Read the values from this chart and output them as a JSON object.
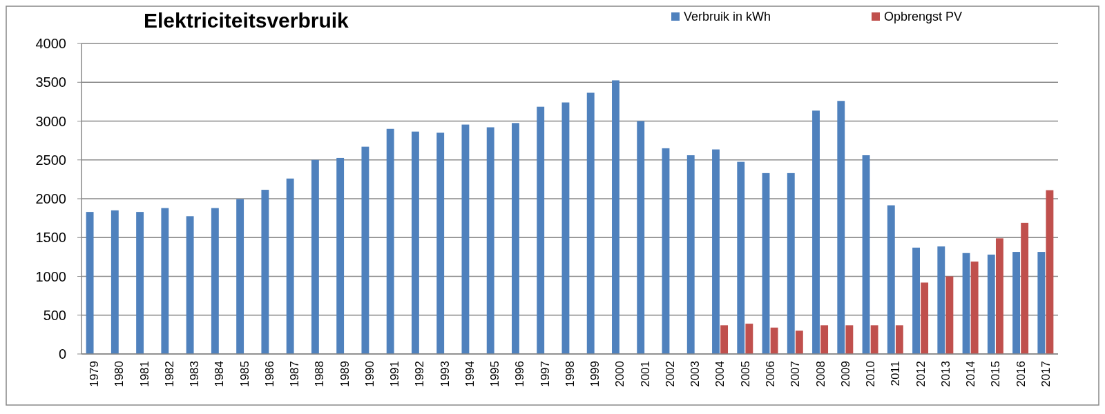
{
  "chart_data": {
    "type": "bar",
    "title": "Elektriciteitsverbruik",
    "categories": [
      "1979",
      "1980",
      "1981",
      "1982",
      "1983",
      "1984",
      "1985",
      "1986",
      "1987",
      "1988",
      "1989",
      "1990",
      "1991",
      "1992",
      "1993",
      "1994",
      "1995",
      "1996",
      "1997",
      "1998",
      "1999",
      "2000",
      "2001",
      "2002",
      "2003",
      "2004",
      "2005",
      "2006",
      "2007",
      "2008",
      "2009",
      "2010",
      "2011",
      "2012",
      "2013",
      "2014",
      "2015",
      "2016",
      "2017"
    ],
    "series": [
      {
        "name": "Verbruik in kWh",
        "color": "#4f81bd",
        "values": [
          1830,
          1850,
          1830,
          1880,
          1775,
          1880,
          1995,
          2115,
          2260,
          2500,
          2525,
          2670,
          2900,
          2865,
          2850,
          2955,
          2920,
          2975,
          3185,
          3240,
          3365,
          3525,
          3000,
          2650,
          2560,
          2635,
          2475,
          2330,
          2330,
          3135,
          3260,
          2560,
          1915,
          1370,
          1385,
          1300,
          1280,
          1315,
          1315
        ]
      },
      {
        "name": "Opbrengst PV",
        "color": "#c0504d",
        "values": [
          null,
          null,
          null,
          null,
          null,
          null,
          null,
          null,
          null,
          null,
          null,
          null,
          null,
          null,
          null,
          null,
          null,
          null,
          null,
          null,
          null,
          null,
          null,
          null,
          null,
          370,
          390,
          340,
          300,
          370,
          370,
          370,
          370,
          920,
          1000,
          1190,
          1490,
          1690,
          2110
        ]
      }
    ],
    "ylim": [
      0,
      4000
    ],
    "yticks": [
      0,
      500,
      1000,
      1500,
      2000,
      2500,
      3000,
      3500,
      4000
    ],
    "grid": "y",
    "legend": "top right"
  }
}
